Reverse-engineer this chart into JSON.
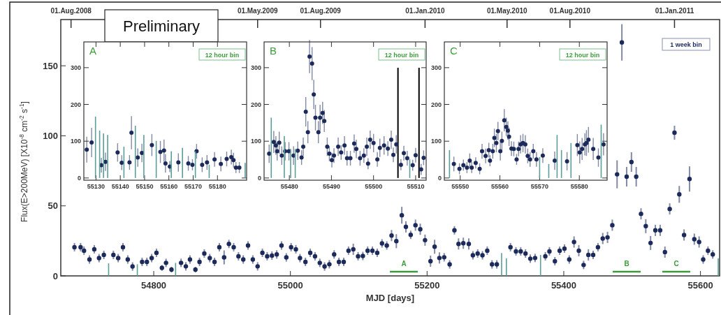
{
  "chart_data": [
    {
      "type": "scatter",
      "xlabel": "MJD   [days]",
      "ylabel": "Flux(E>200MeV)   [X10$^{-8}$ cm$^{-2}$ s$^{-1}$]",
      "annotations": [
        "Preliminary",
        "1 week bin",
        "A",
        "B",
        "C"
      ],
      "xlim": [
        54664,
        55628
      ],
      "ylim": [
        0,
        183
      ],
      "xticks": [
        54800,
        55000,
        55200,
        55400,
        55600
      ],
      "yticks": [
        0,
        50,
        100,
        150
      ],
      "x2lim": [
        "2008-07-17",
        "2011-03-08"
      ],
      "x2ticks": [
        {
          "value": "2008-08-01",
          "label": "01.Aug.2008"
        },
        {
          "value": "2009-05-01",
          "label": "01.May.2009"
        },
        {
          "value": "2009-08-01",
          "label": "01.Aug.2009"
        },
        {
          "value": "2010-01-01",
          "label": "01.Jan.2010"
        },
        {
          "value": "2010-05-01",
          "label": "01.May.2010"
        },
        {
          "value": "2010-08-01",
          "label": "01.Aug.2010"
        },
        {
          "value": "2011-01-01",
          "label": "01.Jan.2011"
        }
      ],
      "marker": "circle",
      "series": [
        {
          "color": "#1b2a5a",
          "x": [
            54684,
            54693,
            54698,
            54706,
            54713,
            54720,
            54727,
            54741,
            54748,
            54755,
            54762,
            54769,
            54783,
            54790,
            54797,
            54804,
            54812,
            54818,
            54826,
            54840,
            54847,
            54853,
            54861,
            54867,
            54874,
            54882,
            54889,
            54896,
            54903,
            54910,
            54917,
            54924,
            54931,
            54938,
            54945,
            54952,
            54959,
            54966,
            54973,
            54980,
            54987,
            54994,
            55001,
            55008,
            55014,
            55022,
            55029,
            55036,
            55043,
            55050,
            55057,
            55064,
            55071,
            55078,
            55085,
            55092,
            55099,
            55106,
            55113,
            55120,
            55127,
            55134,
            55141,
            55148,
            55155,
            55163,
            55169,
            55176,
            55183,
            55190,
            55197,
            55205,
            55211,
            55218,
            55225,
            55233,
            55240,
            55246,
            55253,
            55261,
            55267,
            55274,
            55281,
            55288,
            55295,
            55302,
            55322,
            55330,
            55337,
            55344,
            55351,
            55358,
            55373,
            55379,
            55387,
            55394,
            55401,
            55408,
            55415,
            55422,
            55429,
            55436,
            55443,
            55450,
            55457,
            55464,
            55471,
            55478,
            55485,
            55492,
            55499,
            55506,
            55513,
            55520,
            55527,
            55534,
            55541,
            55548,
            55555,
            55562,
            55569,
            55576,
            55584,
            55591,
            55598,
            55604,
            55611,
            55618
          ],
          "values": [
            20.5,
            20.5,
            18,
            11.7,
            19,
            12.7,
            15,
            15,
            12.7,
            20.5,
            11.7,
            6.7,
            10,
            10,
            12.7,
            16.5,
            5.7,
            9.3,
            4.5,
            9.3,
            6.8,
            11.7,
            4.5,
            10,
            16,
            12.7,
            10,
            20.5,
            13.2,
            22.8,
            20.5,
            14,
            11.7,
            21.7,
            11.7,
            6.8,
            16.5,
            14,
            14.5,
            15.3,
            21.7,
            13.2,
            20.5,
            19,
            12.7,
            10,
            16.5,
            14,
            9.3,
            6.7,
            8.3,
            15.3,
            10,
            10,
            18,
            19,
            14,
            14.2,
            18,
            18,
            16.5,
            23.2,
            21.7,
            28.8,
            24.8,
            43.3,
            35,
            29.3,
            36.2,
            33.3,
            25.5,
            10.5,
            20.8,
            12.8,
            13.3,
            8.2,
            32.5,
            22.8,
            23.3,
            22.8,
            14.7,
            16,
            14.7,
            18,
            8.2,
            8.2,
            20.5,
            17.5,
            17.5,
            16,
            12.3,
            12.8,
            14,
            17.5,
            10.5,
            18,
            19.5,
            11.7,
            24.2,
            18,
            7.8,
            15,
            15,
            20.5,
            26.7,
            27.5,
            36.2,
            72.5,
            166.7,
            70.8,
            81.3,
            70.8,
            44.3,
            35.5,
            23.5,
            32.5,
            32.5,
            17,
            47.8,
            102.2,
            58.2,
            29.2,
            69.2,
            26.2,
            24.2,
            11.7,
            18,
            15.3
          ],
          "errors": [
            3,
            3,
            3,
            3,
            3,
            3,
            3,
            3,
            3,
            3,
            3,
            3,
            3,
            3,
            3,
            3,
            2,
            3,
            2,
            3,
            3,
            3,
            2,
            3,
            3,
            3,
            3,
            3,
            5,
            3,
            3,
            3,
            3,
            3,
            3,
            3,
            3,
            3,
            3,
            3,
            3,
            3,
            3,
            3,
            3,
            3,
            3,
            3,
            3,
            3,
            3,
            3,
            3,
            3,
            3,
            4,
            3,
            3,
            3,
            3,
            3,
            3,
            3,
            4,
            5,
            6,
            4,
            3,
            4,
            4,
            4,
            4,
            5,
            4,
            3,
            3,
            3,
            4,
            4,
            4,
            3,
            3,
            3,
            3,
            3,
            3,
            3,
            3,
            3,
            3,
            3,
            3,
            3,
            3,
            3,
            3,
            3,
            3,
            4,
            4,
            3,
            4,
            3,
            3,
            4,
            4,
            4,
            10,
            13,
            7,
            7,
            7,
            4,
            5,
            5,
            4,
            4,
            4,
            4,
            5,
            6,
            4,
            9,
            4,
            4,
            3,
            3,
            3
          ]
        },
        {
          "type": "bar",
          "color": "#5c9e9a",
          "x": [
            54734,
            54776,
            54832,
            55309,
            55316,
            55366,
            55626
          ],
          "values": [
            9,
            8.3,
            9.3,
            16.3,
            12.5,
            15,
            12.5
          ]
        }
      ]
    },
    {
      "type": "scatter",
      "title": "A",
      "annotations": [
        "12 hour bin"
      ],
      "xlim": [
        55125,
        55192
      ],
      "ylim": [
        -6,
        370
      ],
      "xticks": [
        55130,
        55140,
        55150,
        55160,
        55170,
        55180
      ],
      "yticks": [
        0,
        100,
        200,
        300
      ],
      "marker": "circle",
      "series": [
        {
          "color": "#1b2a5a",
          "x": [
            55126.2,
            55128.2,
            55132.2,
            55133.9,
            55138.9,
            55140.6,
            55143.8,
            55144.6,
            55147.2,
            55148.9,
            55153,
            55156.5,
            55158,
            55158.6,
            55160.4,
            55163.9,
            55168,
            55169.7,
            55171.4,
            55173.7,
            55175.7,
            55178.8,
            55181.4,
            55183.8,
            55185.7,
            55186.6,
            55187.6,
            55189
          ],
          "values": [
            77,
            96.6,
            34.7,
            44,
            69.5,
            41.7,
            42.3,
            123,
            55.5,
            68,
            89.6,
            70.7,
            74.5,
            39.8,
            31,
            42.3,
            39.8,
            36,
            72.6,
            36,
            42.3,
            50.5,
            38,
            51.7,
            56.9,
            48.7,
            28.4,
            28.4
          ],
          "errors": [
            35,
            40,
            20,
            25,
            25,
            20,
            20,
            45,
            25,
            25,
            30,
            30,
            30,
            25,
            15,
            25,
            20,
            15,
            20,
            20,
            20,
            20,
            20,
            20,
            20,
            20,
            15,
            15
          ]
        },
        {
          "type": "bar",
          "color": "#5c9e9a",
          "x": [
            55129.8,
            55131.5,
            55133.1,
            55134.8,
            55141.5,
            55146.2,
            55149.7,
            55154.8,
            55161,
            55165.6,
            55170.9,
            55176.6,
            55191.4
          ],
          "values": [
            167,
            129,
            121,
            117,
            85,
            142,
            117,
            101,
            72.6,
            82,
            72.6,
            36,
            41
          ]
        }
      ]
    },
    {
      "type": "scatter",
      "title": "B",
      "annotations": [
        "12 hour bin"
      ],
      "xlim": [
        55474,
        55512.5
      ],
      "ylim": [
        -6,
        370
      ],
      "xticks": [
        55480,
        55490,
        55500,
        55510
      ],
      "yticks": [
        0,
        100,
        200,
        300
      ],
      "marker": "circle",
      "ref_lines": [
        {
          "axis": "x",
          "value": 55505.8,
          "color": "#000000"
        },
        {
          "axis": "x",
          "value": 55510.8,
          "color": "#000000"
        }
      ],
      "series": [
        {
          "color": "#1b2a5a",
          "x": [
            55475.2,
            55476.3,
            55476.8,
            55477.1,
            55477.6,
            55478.2,
            55479,
            55479.9,
            55481,
            55482,
            55482.9,
            55483.3,
            55483.9,
            55484.4,
            55484.8,
            55485.4,
            55485.8,
            55486.2,
            55486.9,
            55487.3,
            55487.9,
            55488.3,
            55489,
            55489.5,
            55490.1,
            55490.6,
            55491.6,
            55492.3,
            55493.1,
            55493.7,
            55494.5,
            55495.4,
            55495.9,
            55496.8,
            55497.7,
            55498.4,
            55498.7,
            55499.2,
            55500,
            55500.9,
            55501.5,
            55502.5,
            55503.4,
            55504.2,
            55504.7,
            55505.4,
            55506.5,
            55507.2,
            55508,
            55509.3,
            55510,
            55511.3,
            55511.9
          ],
          "values": [
            66,
            98,
            88.5,
            72.6,
            96,
            61,
            72.6,
            72.6,
            61,
            74,
            55.5,
            85,
            180,
            124.5,
            330,
            311,
            227,
            164,
            124.5,
            164,
            177,
            155,
            85,
            66,
            48.7,
            61,
            85,
            69.5,
            88.5,
            53.7,
            53.7,
            93.5,
            79,
            53.7,
            61,
            85,
            39,
            104,
            95,
            50.5,
            82,
            88.5,
            80,
            104,
            63,
            91.5,
            36,
            67.6,
            53.7,
            34.7,
            62,
            23.3,
            55
          ],
          "errors": [
            25,
            30,
            25,
            25,
            30,
            25,
            25,
            25,
            25,
            25,
            20,
            25,
            40,
            30,
            45,
            45,
            40,
            35,
            30,
            35,
            30,
            30,
            25,
            20,
            20,
            20,
            25,
            20,
            25,
            20,
            20,
            25,
            25,
            20,
            20,
            25,
            15,
            25,
            25,
            20,
            25,
            25,
            20,
            25,
            20,
            25,
            15,
            20,
            20,
            15,
            20,
            15,
            20
          ]
        },
        {
          "type": "bar",
          "color": "#5c9e9a",
          "x": [
            55475.7,
            55478.8,
            55480.3,
            55481.4,
            55508.6
          ],
          "values": [
            164,
            114,
            79,
            79,
            50.5
          ]
        }
      ]
    },
    {
      "type": "scatter",
      "title": "C",
      "annotations": [
        "12 hour bin"
      ],
      "xlim": [
        55546,
        55587
      ],
      "ylim": [
        -6,
        370
      ],
      "xticks": [
        55550,
        55560,
        55570,
        55580
      ],
      "yticks": [
        0,
        100,
        200,
        300
      ],
      "marker": "circle",
      "series": [
        {
          "color": "#1b2a5a",
          "x": [
            55548.4,
            55549.8,
            55550.8,
            55551.7,
            55552.4,
            55552.9,
            55553.9,
            55554.9,
            55555.5,
            55556.4,
            55557.2,
            55557.5,
            55558.2,
            55558.6,
            55559.1,
            55559.5,
            55560.1,
            55560.5,
            55561.1,
            55561.6,
            55562,
            55562.3,
            55562.9,
            55563.5,
            55564.2,
            55564.7,
            55565.2,
            55565.8,
            55566.4,
            55567,
            55567.6,
            55568.4,
            55569.2,
            55570.8,
            55573.8,
            55576.9,
            55579.5,
            55580.1,
            55580.7,
            55581.4,
            55581.8,
            55582.3,
            55583.5,
            55584.8,
            55586.1
          ],
          "values": [
            38,
            25,
            35,
            28.4,
            47,
            28.4,
            41,
            25,
            72.6,
            60,
            75.8,
            47,
            72.6,
            109,
            95,
            127.5,
            72.6,
            101,
            157,
            139,
            129,
            112,
            80,
            79,
            50.5,
            79,
            91.5,
            95,
            91.5,
            60,
            50.5,
            72.6,
            50.5,
            61,
            47,
            45.5,
            89.6,
            69.5,
            79,
            91.5,
            95,
            104,
            79,
            55.5,
            91.5
          ],
          "errors": [
            20,
            15,
            15,
            15,
            20,
            15,
            15,
            15,
            20,
            20,
            20,
            15,
            20,
            25,
            25,
            25,
            25,
            25,
            30,
            25,
            25,
            25,
            20,
            20,
            15,
            20,
            25,
            25,
            25,
            20,
            20,
            20,
            20,
            20,
            25,
            25,
            30,
            30,
            30,
            30,
            35,
            35,
            30,
            25,
            30
          ]
        },
        {
          "type": "bar",
          "color": "#5c9e9a",
          "x": [
            55547.3,
            55570,
            55572.3,
            55574.4,
            55575.5,
            55577.9,
            55585.5
          ],
          "values": [
            75.8,
            57,
            38,
            117,
            75.8,
            95,
            145
          ]
        }
      ]
    }
  ]
}
